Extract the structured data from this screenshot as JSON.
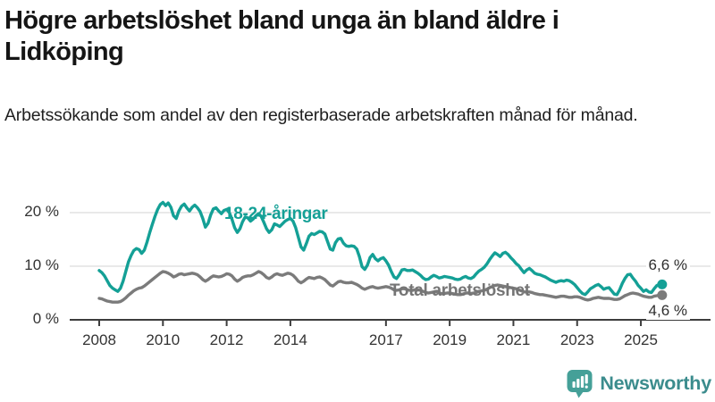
{
  "header": {
    "title_line1": "Högre arbetslöshet bland unga än bland äldre i",
    "title_line2": "Lidköping",
    "subtitle": "Arbetssökande som andel av den registerbaserade arbetskraften månad för månad."
  },
  "colors": {
    "accent_teal": "#14A096",
    "line_gray": "#7B7B7B",
    "axis_text": "#333333",
    "gridline": "#DCDCDC",
    "axis_line": "#3D3D3D",
    "logo_teal": "#45A098",
    "brand_text": "#3B8C8D"
  },
  "footer": {
    "brand": "Newsworthy"
  },
  "chart_data": {
    "type": "line",
    "title": "Högre arbetslöshet bland unga än bland äldre i Lidköping",
    "subtitle": "Arbetssökande som andel av den registerbaserade arbetskraften månad för månad.",
    "xlabel": "",
    "ylabel": "",
    "frequency": "monthly",
    "start": "2008-01",
    "end": "2025-09",
    "ylim": [
      0,
      23
    ],
    "grid": true,
    "legend_position": "inline",
    "y_ticks": [
      {
        "value": 0,
        "label": "0 %"
      },
      {
        "value": 10,
        "label": "10 %"
      },
      {
        "value": 20,
        "label": "20 %"
      }
    ],
    "x_ticks": [
      {
        "year": 2008,
        "label": "2008"
      },
      {
        "year": 2010,
        "label": "2010"
      },
      {
        "year": 2012,
        "label": "2012"
      },
      {
        "year": 2014,
        "label": "2014"
      },
      {
        "year": 2017,
        "label": "2017"
      },
      {
        "year": 2019,
        "label": "2019"
      },
      {
        "year": 2021,
        "label": "2021"
      },
      {
        "year": 2023,
        "label": "2023"
      },
      {
        "year": 2025,
        "label": "2025"
      }
    ],
    "series": [
      {
        "name": "18-24-åringar",
        "color": "#14A096",
        "end_value": 6.6,
        "end_label": "6,6 %",
        "values": [
          9.2,
          8.8,
          8.2,
          7.3,
          6.4,
          5.9,
          5.6,
          5.3,
          5.9,
          7.2,
          9.0,
          10.8,
          12.0,
          12.9,
          13.3,
          13.1,
          12.4,
          13.0,
          14.5,
          16.2,
          17.8,
          19.3,
          20.6,
          21.5,
          21.9,
          21.3,
          21.8,
          21.0,
          19.4,
          18.9,
          20.3,
          21.2,
          21.6,
          20.9,
          20.3,
          21.0,
          21.4,
          20.9,
          20.2,
          18.9,
          17.3,
          18.0,
          19.6,
          20.7,
          20.9,
          20.3,
          19.8,
          20.4,
          20.6,
          20.0,
          18.8,
          17.2,
          16.3,
          17.0,
          18.3,
          19.2,
          19.0,
          18.4,
          18.8,
          19.4,
          19.8,
          19.3,
          18.2,
          17.0,
          16.3,
          16.8,
          17.9,
          17.7,
          17.4,
          17.9,
          18.4,
          18.7,
          18.9,
          18.4,
          17.2,
          15.4,
          13.6,
          13.0,
          14.2,
          15.6,
          16.1,
          15.9,
          16.2,
          16.5,
          16.4,
          16.0,
          14.6,
          13.2,
          13.0,
          14.4,
          15.1,
          15.2,
          14.3,
          13.8,
          13.7,
          13.8,
          13.7,
          13.2,
          11.8,
          9.9,
          9.4,
          10.2,
          11.6,
          12.2,
          11.4,
          11.0,
          11.4,
          11.6,
          11.0,
          10.2,
          9.0,
          8.0,
          7.7,
          8.4,
          9.3,
          9.4,
          9.2,
          9.2,
          9.3,
          9.0,
          8.7,
          8.3,
          7.8,
          7.5,
          7.6,
          8.0,
          8.3,
          8.1,
          7.8,
          7.9,
          8.1,
          8.0,
          7.9,
          7.8,
          7.6,
          7.5,
          7.6,
          7.9,
          8.1,
          7.8,
          7.7,
          8.0,
          8.6,
          9.1,
          9.4,
          9.8,
          10.4,
          11.2,
          11.9,
          12.5,
          12.2,
          11.8,
          12.4,
          12.6,
          12.2,
          11.6,
          11.1,
          10.5,
          10.1,
          9.4,
          8.8,
          9.3,
          9.6,
          9.2,
          8.7,
          8.5,
          8.4,
          8.2,
          8.0,
          7.7,
          7.4,
          7.2,
          7.0,
          7.2,
          7.3,
          7.2,
          7.4,
          7.3,
          7.0,
          6.6,
          6.0,
          5.4,
          4.9,
          4.7,
          5.2,
          5.8,
          6.1,
          6.4,
          6.6,
          6.2,
          5.7,
          5.9,
          6.0,
          5.4,
          4.8,
          4.7,
          5.6,
          6.8,
          7.7,
          8.4,
          8.5,
          7.8,
          7.2,
          6.4,
          5.9,
          5.3,
          5.6,
          5.2,
          5.1,
          5.8,
          6.4,
          6.6,
          6.6
        ]
      },
      {
        "name": "Total arbetslöshet",
        "color": "#7B7B7B",
        "end_value": 4.6,
        "end_label": "4,6 %",
        "values": [
          4.0,
          3.9,
          3.7,
          3.5,
          3.4,
          3.3,
          3.3,
          3.3,
          3.4,
          3.7,
          4.1,
          4.6,
          5.0,
          5.4,
          5.7,
          5.9,
          6.0,
          6.3,
          6.7,
          7.1,
          7.5,
          7.9,
          8.3,
          8.7,
          9.0,
          8.9,
          8.7,
          8.4,
          8.0,
          8.2,
          8.5,
          8.6,
          8.4,
          8.5,
          8.6,
          8.7,
          8.6,
          8.4,
          8.0,
          7.5,
          7.2,
          7.5,
          7.9,
          8.2,
          8.1,
          8.0,
          8.1,
          8.3,
          8.6,
          8.5,
          8.2,
          7.6,
          7.2,
          7.5,
          7.9,
          8.1,
          8.2,
          8.2,
          8.4,
          8.7,
          9.0,
          8.8,
          8.4,
          7.9,
          7.7,
          8.0,
          8.4,
          8.6,
          8.4,
          8.3,
          8.5,
          8.7,
          8.6,
          8.3,
          7.8,
          7.2,
          6.9,
          7.2,
          7.6,
          7.9,
          7.8,
          7.7,
          7.9,
          8.0,
          7.8,
          7.5,
          7.0,
          6.5,
          6.3,
          6.7,
          7.1,
          7.2,
          7.0,
          6.9,
          6.9,
          7.0,
          6.8,
          6.6,
          6.3,
          5.9,
          5.7,
          5.9,
          6.1,
          6.2,
          6.0,
          5.9,
          6.0,
          6.1,
          6.2,
          6.1,
          5.9,
          5.6,
          5.5,
          5.6,
          5.8,
          5.8,
          5.6,
          5.5,
          5.5,
          5.6,
          5.6,
          5.5,
          5.3,
          5.1,
          5.0,
          5.1,
          5.2,
          5.2,
          5.0,
          4.9,
          4.9,
          5.0,
          5.0,
          4.9,
          4.8,
          4.7,
          4.7,
          4.8,
          5.0,
          5.0,
          4.9,
          5.0,
          5.1,
          5.3,
          5.4,
          5.5,
          5.7,
          6.0,
          6.2,
          6.4,
          6.5,
          6.4,
          6.3,
          6.2,
          6.1,
          6.0,
          5.9,
          5.8,
          5.6,
          5.4,
          5.2,
          5.2,
          5.2,
          5.1,
          4.9,
          4.8,
          4.7,
          4.7,
          4.6,
          4.5,
          4.4,
          4.3,
          4.2,
          4.3,
          4.4,
          4.4,
          4.3,
          4.2,
          4.2,
          4.3,
          4.3,
          4.2,
          4.0,
          3.8,
          3.7,
          3.8,
          4.0,
          4.1,
          4.2,
          4.1,
          4.0,
          4.0,
          4.0,
          3.9,
          3.8,
          3.8,
          3.9,
          4.2,
          4.5,
          4.7,
          4.9,
          5.0,
          4.9,
          4.8,
          4.6,
          4.4,
          4.3,
          4.2,
          4.2,
          4.4,
          4.5,
          4.6,
          4.6
        ]
      }
    ]
  }
}
